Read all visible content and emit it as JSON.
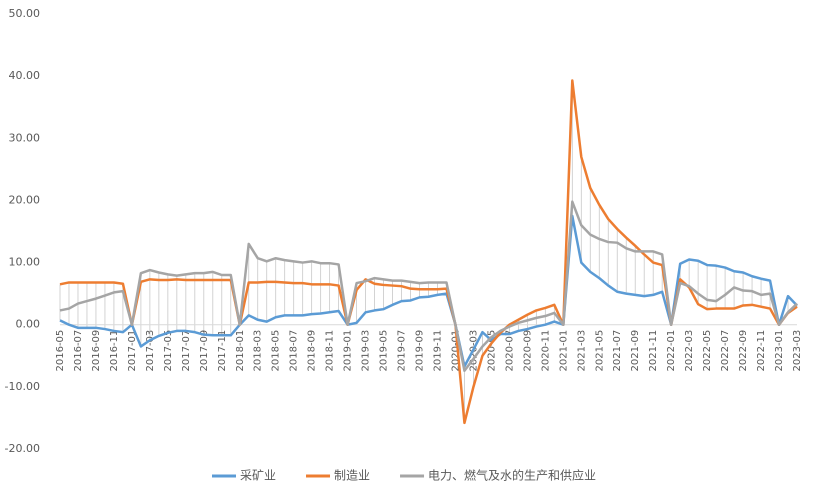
{
  "chart_data": {
    "type": "line",
    "categories": [
      "2016-05",
      null,
      "2016-07",
      null,
      "2016-09",
      null,
      "2016-11",
      null,
      "2017-01",
      null,
      "2017-03",
      null,
      "2017-05",
      null,
      "2017-07",
      null,
      "2017-09",
      null,
      "2017-11",
      null,
      "2018-01",
      null,
      "2018-03",
      null,
      "2018-05",
      null,
      "2018-07",
      null,
      "2018-09",
      null,
      "2018-11",
      null,
      "2019-01",
      null,
      "2019-03",
      null,
      "2019-05",
      null,
      "2019-07",
      null,
      "2019-09",
      null,
      "2019-11",
      null,
      "2020-01",
      null,
      "2020-03",
      null,
      "2020-05",
      null,
      "2020-07",
      null,
      "2020-09",
      null,
      "2020-11",
      null,
      "2021-01",
      null,
      "2021-03",
      null,
      "2021-05",
      null,
      "2021-07",
      null,
      "2021-09",
      null,
      "2021-11",
      null,
      "2022-01",
      null,
      "2022-03",
      null,
      "2022-05",
      null,
      "2022-07",
      null,
      "2022-09",
      null,
      "2022-11",
      null,
      "2023-01",
      null,
      "2023-03"
    ],
    "series": [
      {
        "name": "采矿业",
        "color": "#5b9bd5",
        "values": [
          0.7,
          0,
          -0.5,
          -0.5,
          -0.5,
          -0.7,
          -1.0,
          -1.2,
          0,
          -3.5,
          -2.5,
          -1.8,
          -1.3,
          -1.0,
          -1.0,
          -1.2,
          -1.6,
          -1.7,
          -1.7,
          -1.7,
          0,
          1.5,
          0.8,
          0.5,
          1.2,
          1.5,
          1.5,
          1.5,
          1.7,
          1.8,
          2.0,
          2.2,
          0,
          0.3,
          2.0,
          2.3,
          2.5,
          3.2,
          3.8,
          3.9,
          4.4,
          4.5,
          4.8,
          5.0,
          0,
          -6.7,
          -4.0,
          -1.2,
          -2.5,
          -1.5,
          -1.5,
          -1.0,
          -0.7,
          -0.3,
          0,
          0.5,
          0,
          17.5,
          10.0,
          8.5,
          7.5,
          6.3,
          5.3,
          5.0,
          4.8,
          4.6,
          4.8,
          5.3,
          0,
          9.8,
          10.5,
          10.3,
          9.6,
          9.5,
          9.2,
          8.6,
          8.4,
          7.8,
          7.4,
          7.1,
          0,
          4.6,
          3.1
        ]
      },
      {
        "name": "制造业",
        "color": "#ed7d31",
        "values": [
          6.5,
          6.8,
          6.8,
          6.8,
          6.8,
          6.8,
          6.8,
          6.6,
          0,
          6.9,
          7.3,
          7.2,
          7.2,
          7.3,
          7.2,
          7.2,
          7.2,
          7.2,
          7.2,
          7.2,
          0,
          6.8,
          6.8,
          6.9,
          6.9,
          6.8,
          6.7,
          6.7,
          6.5,
          6.5,
          6.5,
          6.3,
          0,
          5.6,
          7.3,
          6.6,
          6.4,
          6.3,
          6.2,
          5.8,
          5.7,
          5.7,
          5.7,
          5.8,
          0,
          -15.8,
          -10.0,
          -5.0,
          -3.0,
          -1.3,
          0.0,
          0.8,
          1.6,
          2.3,
          2.7,
          3.2,
          0,
          39.3,
          27.0,
          22.0,
          19.3,
          17.0,
          15.4,
          14.0,
          12.7,
          11.3,
          10.0,
          9.6,
          0,
          7.3,
          6.0,
          3.3,
          2.5,
          2.6,
          2.6,
          2.6,
          3.1,
          3.2,
          2.9,
          2.6,
          0,
          1.9,
          2.9
        ]
      },
      {
        "name": "电力、燃气及水的生产和供应业",
        "color": "#a5a5a5",
        "values": [
          2.3,
          2.6,
          3.4,
          3.8,
          4.2,
          4.7,
          5.2,
          5.4,
          0,
          8.3,
          8.8,
          8.4,
          8.1,
          7.9,
          8.1,
          8.3,
          8.3,
          8.5,
          8.0,
          8.0,
          0,
          13.0,
          10.7,
          10.2,
          10.7,
          10.4,
          10.2,
          10.0,
          10.2,
          9.9,
          9.9,
          9.7,
          0,
          6.7,
          7.0,
          7.5,
          7.3,
          7.1,
          7.1,
          6.9,
          6.7,
          6.8,
          6.8,
          6.8,
          0,
          -7.4,
          -5.5,
          -3.5,
          -2.0,
          -1.0,
          -0.3,
          0.3,
          0.7,
          1.1,
          1.4,
          1.9,
          0,
          19.8,
          16.0,
          14.5,
          13.8,
          13.3,
          13.2,
          12.3,
          11.8,
          11.8,
          11.8,
          11.3,
          0,
          6.7,
          6.2,
          5.0,
          4.0,
          3.8,
          4.8,
          6.0,
          5.5,
          5.4,
          4.8,
          5.0,
          0,
          2.0,
          3.4
        ]
      }
    ],
    "ylim": [
      -20,
      50
    ],
    "yticks": [
      {
        "value": -20,
        "label": "-20.00"
      },
      {
        "value": -10,
        "label": "-10.00"
      },
      {
        "value": 0,
        "label": "0.00"
      },
      {
        "value": 10,
        "label": "10.00"
      },
      {
        "value": 20,
        "label": "20.00"
      },
      {
        "value": 30,
        "label": "30.00"
      },
      {
        "value": 40,
        "label": "40.00"
      },
      {
        "value": 50,
        "label": "50.00"
      }
    ],
    "grid": false,
    "legend": "bottom"
  }
}
